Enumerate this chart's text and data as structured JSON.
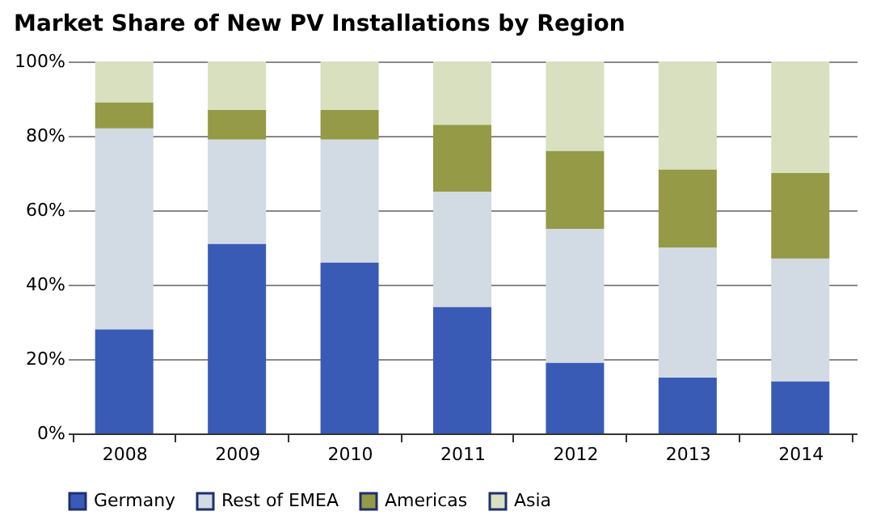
{
  "chart_data": {
    "type": "bar",
    "stacked": true,
    "title": "Market Share of New PV Installations by Region",
    "categories": [
      "2008",
      "2009",
      "2010",
      "2011",
      "2012",
      "2013",
      "2014"
    ],
    "series": [
      {
        "name": "Germany",
        "color": "#3a5bb5",
        "values": [
          28,
          51,
          46,
          34,
          19,
          15,
          14
        ]
      },
      {
        "name": "Rest of EMEA",
        "color": "#d2dae3",
        "values": [
          54,
          28,
          33,
          31,
          36,
          35,
          33
        ]
      },
      {
        "name": "Americas",
        "color": "#949a45",
        "values": [
          7,
          8,
          8,
          18,
          21,
          21,
          23
        ]
      },
      {
        "name": "Asia",
        "color": "#d8e0c0",
        "values": [
          11,
          13,
          13,
          17,
          24,
          29,
          30
        ]
      }
    ],
    "ylim": [
      0,
      100
    ],
    "yticks": [
      {
        "value": 0,
        "label": "0%"
      },
      {
        "value": 20,
        "label": "20%"
      },
      {
        "value": 40,
        "label": "40%"
      },
      {
        "value": 60,
        "label": "60%"
      },
      {
        "value": 80,
        "label": "80%"
      },
      {
        "value": 100,
        "label": "100%"
      }
    ],
    "grid": "y",
    "legend": "bottom"
  }
}
